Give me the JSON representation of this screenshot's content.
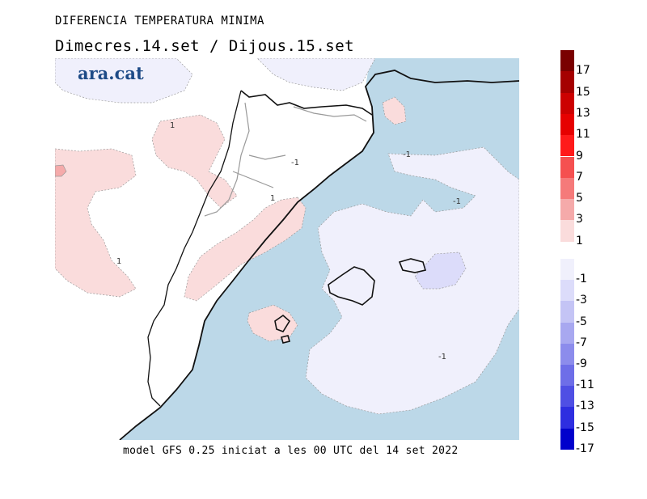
{
  "header": {
    "title": "DIFERENCIA TEMPERATURA MINIMA",
    "subtitle": "Dimecres.14.set / Dijous.15.set"
  },
  "footer": {
    "text": "model GFS 0.25 iniciat a les 00 UTC del 14 set 2022"
  },
  "logo": {
    "text": "ara.cat"
  },
  "colorbar": {
    "positive": [
      {
        "label": "17",
        "color": "#7a0000"
      },
      {
        "label": "15",
        "color": "#a50000"
      },
      {
        "label": "13",
        "color": "#cc0000"
      },
      {
        "label": "11",
        "color": "#e60000"
      },
      {
        "label": "9",
        "color": "#ff1a1a"
      },
      {
        "label": "7",
        "color": "#f55050"
      },
      {
        "label": "5",
        "color": "#f57a7a"
      },
      {
        "label": "3",
        "color": "#f5aaaa"
      },
      {
        "label": "1",
        "color": "#fadcdc"
      }
    ],
    "negative": [
      {
        "label": "-1",
        "color": "#f0f0fc"
      },
      {
        "label": "-3",
        "color": "#dcdcfa"
      },
      {
        "label": "-5",
        "color": "#c4c4f5"
      },
      {
        "label": "-7",
        "color": "#a8a8f0"
      },
      {
        "label": "-9",
        "color": "#8c8cec"
      },
      {
        "label": "-11",
        "color": "#6e6ee8"
      },
      {
        "label": "-13",
        "color": "#4f4fe4"
      },
      {
        "label": "-15",
        "color": "#2e2ee0"
      },
      {
        "label": "-17",
        "color": "#0000cc"
      }
    ]
  },
  "map": {
    "sea_color": "#bcd8e8",
    "contour_labels": [
      "1",
      "1",
      "-1",
      "1",
      "-1",
      "-1",
      "-1"
    ]
  }
}
